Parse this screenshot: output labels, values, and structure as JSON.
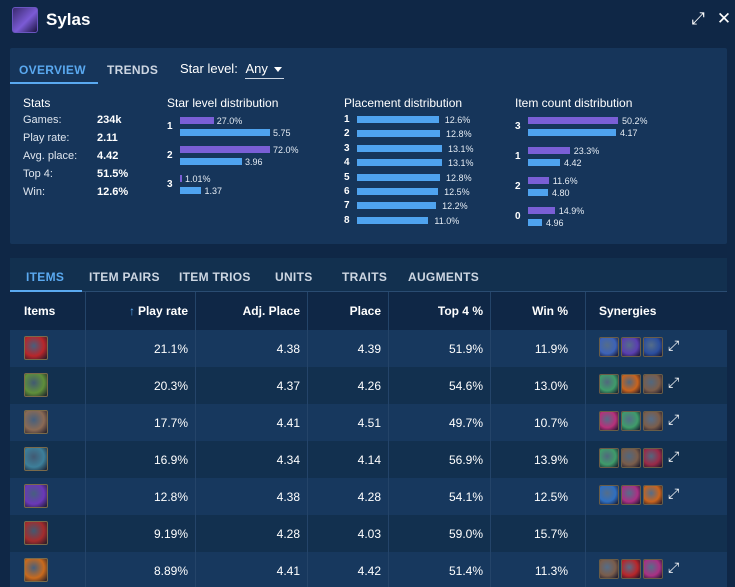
{
  "champion": {
    "name": "Sylas"
  },
  "window": {
    "expand_glyph": "⤢",
    "close_glyph": "✕"
  },
  "overview_tabs": [
    {
      "label": "OVERVIEW"
    },
    {
      "label": "TRENDS"
    }
  ],
  "star_select": {
    "label": "Star level:",
    "value": "Any"
  },
  "stats": {
    "title": "Stats",
    "rows": [
      {
        "label": "Games:",
        "value": "234k"
      },
      {
        "label": "Play rate:",
        "value": "2.11"
      },
      {
        "label": "Avg. place:",
        "value": "4.42"
      },
      {
        "label": "Top 4:",
        "value": "51.5%"
      },
      {
        "label": "Win:",
        "value": "12.6%"
      }
    ]
  },
  "star_distribution": {
    "title": "Star level distribution",
    "rows": [
      {
        "label": "1",
        "pct": "27.0%",
        "pct_value": 27.0,
        "place": "5.75",
        "place_value": 5.75
      },
      {
        "label": "2",
        "pct": "72.0%",
        "pct_value": 72.0,
        "place": "3.96",
        "place_value": 3.96
      },
      {
        "label": "3",
        "pct": "1.01%",
        "pct_value": 1.01,
        "place": "1.37",
        "place_value": 1.37
      }
    ]
  },
  "placement_distribution": {
    "title": "Placement distribution",
    "rows": [
      {
        "label": "1",
        "pct": "12.6%",
        "value": 12.6
      },
      {
        "label": "2",
        "pct": "12.8%",
        "value": 12.8
      },
      {
        "label": "3",
        "pct": "13.1%",
        "value": 13.1
      },
      {
        "label": "4",
        "pct": "13.1%",
        "value": 13.1
      },
      {
        "label": "5",
        "pct": "12.8%",
        "value": 12.8
      },
      {
        "label": "6",
        "pct": "12.5%",
        "value": 12.5
      },
      {
        "label": "7",
        "pct": "12.2%",
        "value": 12.2
      },
      {
        "label": "8",
        "pct": "11.0%",
        "value": 11.0
      }
    ]
  },
  "item_count_distribution": {
    "title": "Item count distribution",
    "rows": [
      {
        "label": "3",
        "pct": "50.2%",
        "pct_value": 50.2,
        "place": "4.17",
        "place_value": 4.17
      },
      {
        "label": "1",
        "pct": "23.3%",
        "pct_value": 23.3,
        "place": "4.42",
        "place_value": 4.42
      },
      {
        "label": "2",
        "pct": "11.6%",
        "pct_value": 11.6,
        "place": "4.80",
        "place_value": 4.8
      },
      {
        "label": "0",
        "pct": "14.9%",
        "pct_value": 14.9,
        "place": "4.96",
        "place_value": 4.96
      }
    ]
  },
  "bottom_tabs": [
    {
      "label": "ITEMS"
    },
    {
      "label": "ITEM PAIRS"
    },
    {
      "label": "ITEM TRIOS"
    },
    {
      "label": "UNITS"
    },
    {
      "label": "TRAITS"
    },
    {
      "label": "AUGMENTS"
    }
  ],
  "table": {
    "headers": {
      "items": "Items",
      "sort_arrow": "↑",
      "play_rate": "Play rate",
      "adj_place": "Adj. Place",
      "place": "Place",
      "top4": "Top 4 %",
      "win": "Win %",
      "synergies": "Synergies"
    },
    "rows": [
      {
        "item_icon": "red-slash-item-icon",
        "item_color": "#b8262a",
        "play_rate": "21.1%",
        "adj_place": "4.38",
        "place": "4.39",
        "top4": "51.9%",
        "win": "11.9%",
        "synergies": [
          {
            "icon": "blue-storm-icon",
            "color": "#3d63b8"
          },
          {
            "icon": "purple-crown-icon",
            "color": "#5a3fb0"
          },
          {
            "icon": "blue-orb-icon",
            "color": "#2b4e9e"
          }
        ]
      },
      {
        "item_icon": "green-crown-item-icon",
        "item_color": "#5f8f3a",
        "play_rate": "20.3%",
        "adj_place": "4.37",
        "place": "4.26",
        "top4": "54.6%",
        "win": "13.0%",
        "synergies": [
          {
            "icon": "green-blade-icon",
            "color": "#3f9c6a"
          },
          {
            "icon": "orange-flame-icon",
            "color": "#c9641d"
          },
          {
            "icon": "stone-spiral-icon",
            "color": "#7a5d4b"
          }
        ]
      },
      {
        "item_icon": "stone-spiral-item-icon",
        "item_color": "#8a6a55",
        "play_rate": "17.7%",
        "adj_place": "4.41",
        "place": "4.51",
        "top4": "49.7%",
        "win": "10.7%",
        "synergies": [
          {
            "icon": "pink-orb-icon",
            "color": "#b7317a"
          },
          {
            "icon": "green-blade-icon",
            "color": "#3f9c6a"
          },
          {
            "icon": "stone-spiral-icon",
            "color": "#7a5d4b"
          }
        ]
      },
      {
        "item_icon": "teal-staff-item-icon",
        "item_color": "#3d7f9a",
        "play_rate": "16.9%",
        "adj_place": "4.34",
        "place": "4.14",
        "top4": "56.9%",
        "win": "13.9%",
        "synergies": [
          {
            "icon": "green-blade-icon",
            "color": "#3f9c6a"
          },
          {
            "icon": "stone-spiral-icon",
            "color": "#7a5d4b"
          },
          {
            "icon": "crimson-gem-icon",
            "color": "#9a2a48"
          }
        ]
      },
      {
        "item_icon": "violet-mage-item-icon",
        "item_color": "#6a38b8",
        "play_rate": "12.8%",
        "adj_place": "4.38",
        "place": "4.28",
        "top4": "54.1%",
        "win": "12.5%",
        "synergies": [
          {
            "icon": "blue-gem-icon",
            "color": "#2f6fc0"
          },
          {
            "icon": "magenta-flame-icon",
            "color": "#a93184"
          },
          {
            "icon": "orange-flame-icon",
            "color": "#c9641d"
          }
        ]
      },
      {
        "item_icon": "red-armor-item-icon",
        "item_color": "#a42c2c",
        "play_rate": "9.19%",
        "adj_place": "4.28",
        "place": "4.03",
        "top4": "59.0%",
        "win": "15.7%",
        "synergies": []
      },
      {
        "item_icon": "orange-dragon-item-icon",
        "item_color": "#c96a1d",
        "play_rate": "8.89%",
        "adj_place": "4.41",
        "place": "4.42",
        "top4": "51.4%",
        "win": "11.3%",
        "synergies": [
          {
            "icon": "stone-spiral-icon",
            "color": "#7a5d4b"
          },
          {
            "icon": "red-slash-icon",
            "color": "#b8262a"
          },
          {
            "icon": "magenta-flame-icon",
            "color": "#a93184"
          }
        ]
      }
    ]
  },
  "expand_glyph": "⤢"
}
